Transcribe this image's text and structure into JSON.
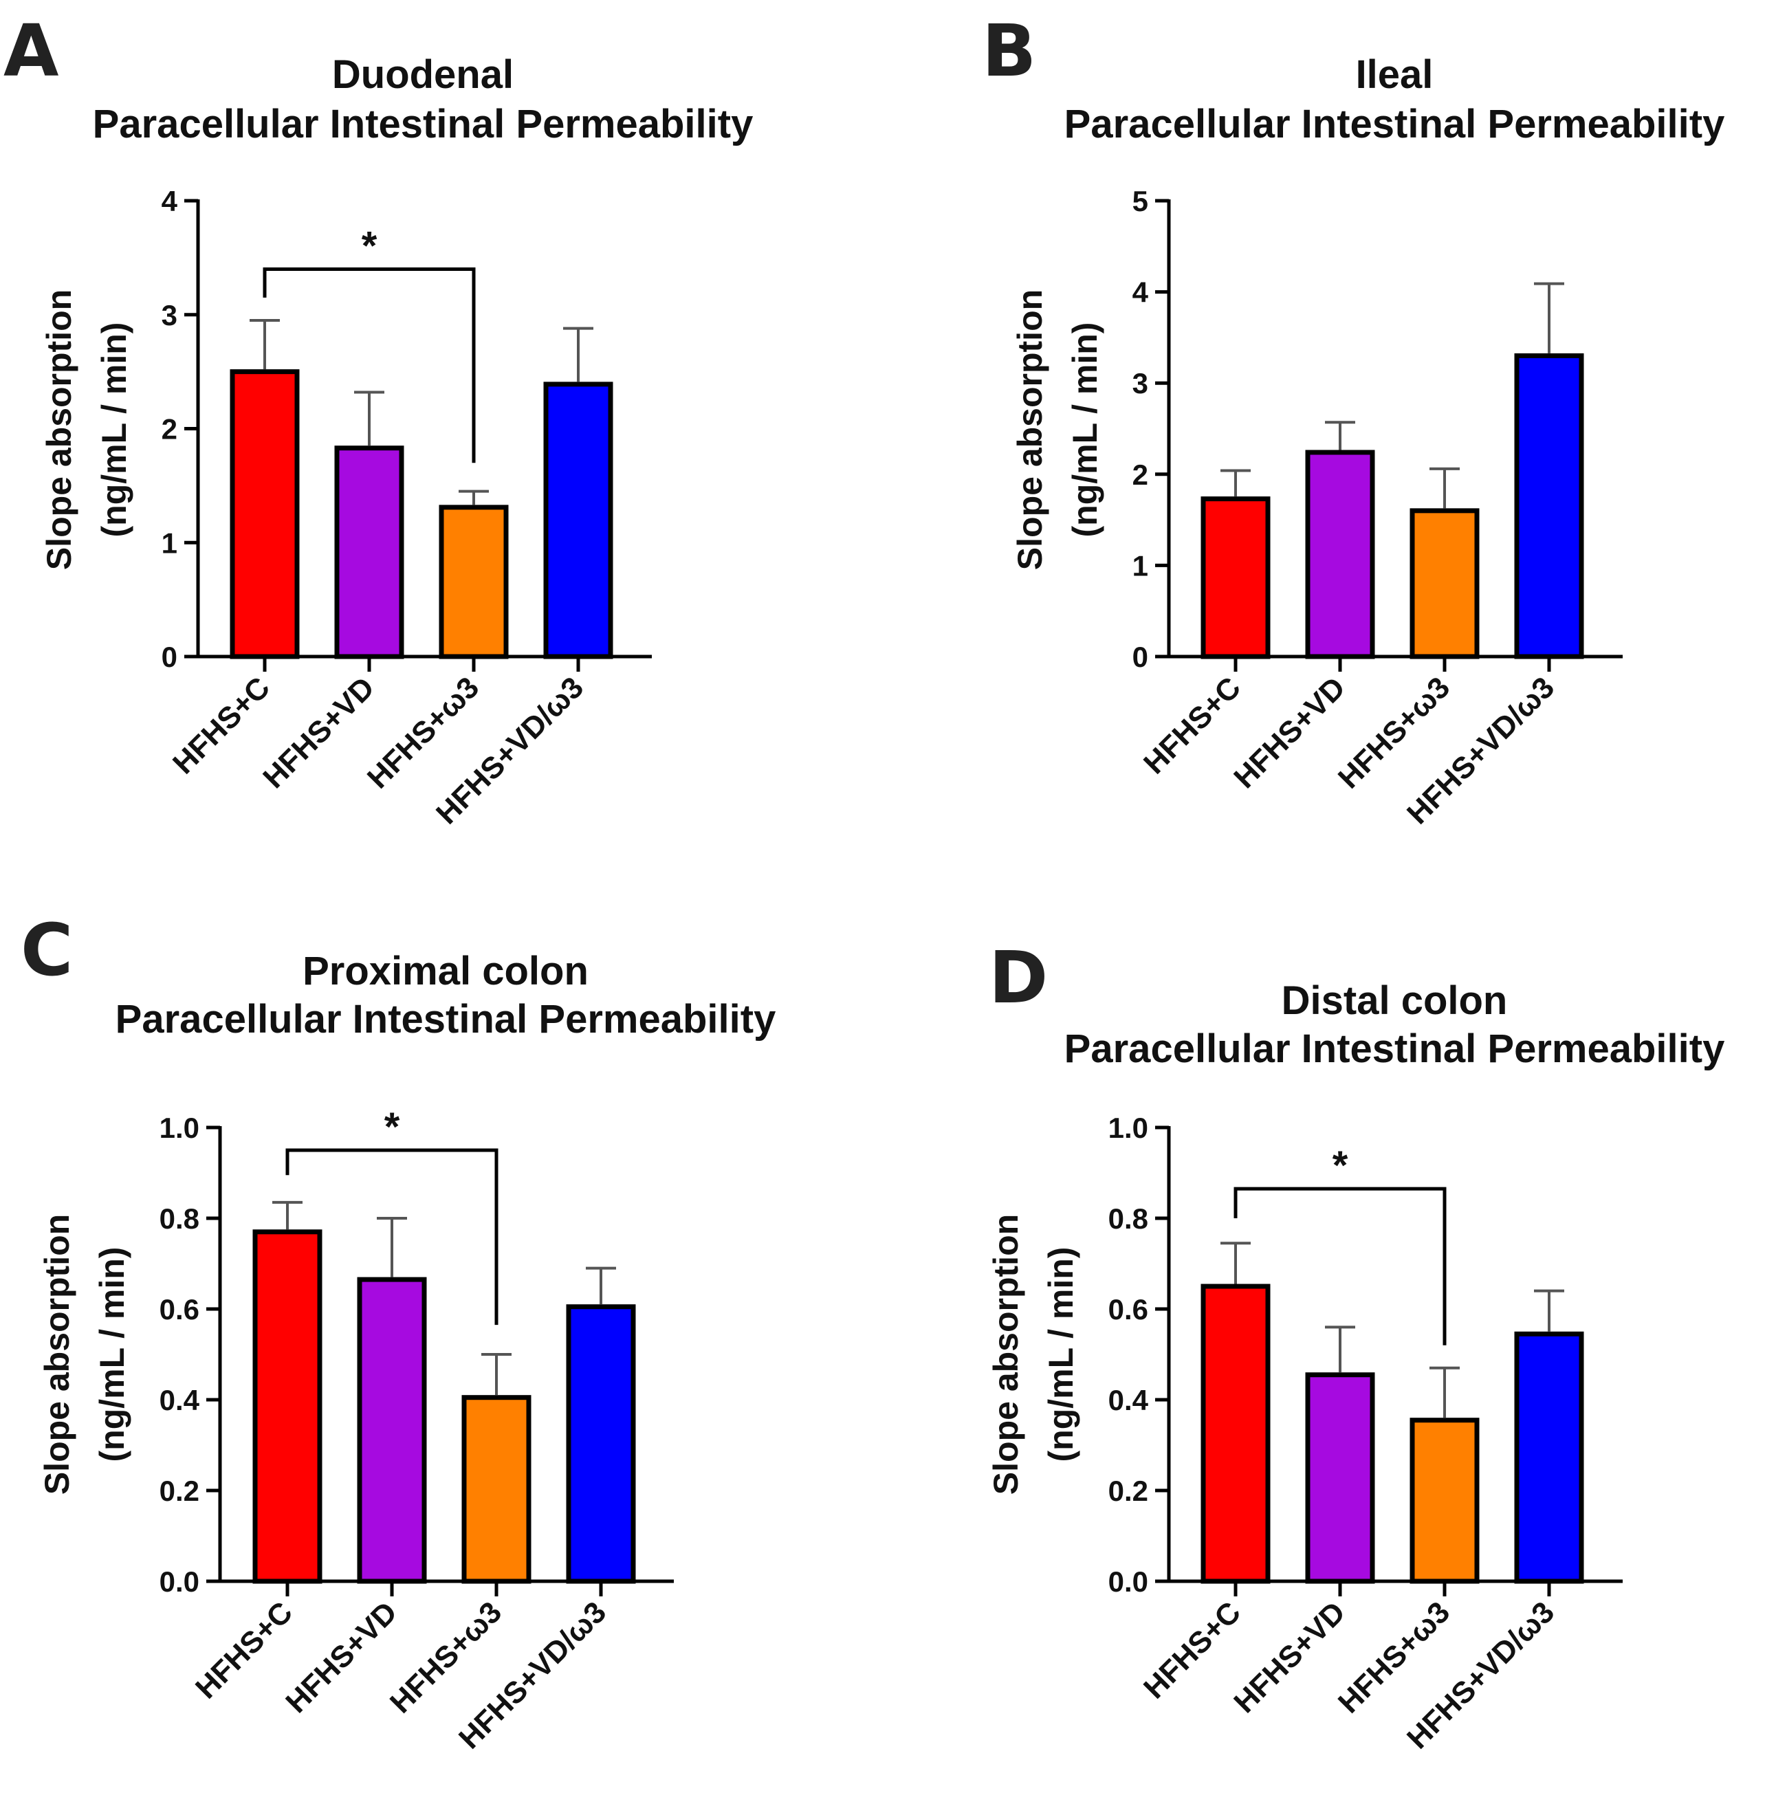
{
  "figure": {
    "colors": {
      "HFHS+C": "#ff0000",
      "HFHS+VD": "#a60ae0",
      "HFHS+ω3": "#ff8000",
      "HFHS+VD/ω3": "#0000ff",
      "outline": "#000000",
      "error_bar": "#555555"
    }
  },
  "chart_data": [
    {
      "panel": "A",
      "type": "bar",
      "title": [
        "Duodenal",
        "Paracellular Intestinal Permeability"
      ],
      "xlabel": "",
      "ylabel": [
        "Slope absorption",
        "(ng/mL / min)"
      ],
      "ylim": [
        0,
        4
      ],
      "yticks": [
        0,
        1,
        2,
        3,
        4
      ],
      "ytick_labels": [
        "0",
        "1",
        "2",
        "3",
        "4"
      ],
      "categories": [
        "HFHS+C",
        "HFHS+VD",
        "HFHS+ω3",
        "HFHS+VD/ω3"
      ],
      "values": [
        2.5,
        1.83,
        1.31,
        2.39
      ],
      "errors": [
        0.45,
        0.49,
        0.14,
        0.49
      ],
      "significance": [
        {
          "from": 0,
          "to": 2,
          "label": "*",
          "level": 3.4,
          "left_drop": 3.15,
          "right_drop": 1.7
        }
      ],
      "grid": false,
      "legend": "none"
    },
    {
      "panel": "B",
      "type": "bar",
      "title": [
        "Ileal",
        "Paracellular Intestinal Permeability"
      ],
      "xlabel": "",
      "ylabel": [
        "Slope absorption",
        "(ng/mL / min)"
      ],
      "ylim": [
        0,
        5
      ],
      "yticks": [
        0,
        1,
        2,
        3,
        4,
        5
      ],
      "ytick_labels": [
        "0",
        "1",
        "2",
        "3",
        "4",
        "5"
      ],
      "categories": [
        "HFHS+C",
        "HFHS+VD",
        "HFHS+ω3",
        "HFHS+VD/ω3"
      ],
      "values": [
        1.73,
        2.24,
        1.6,
        3.3
      ],
      "errors": [
        0.31,
        0.33,
        0.46,
        0.79
      ],
      "significance": [],
      "grid": false,
      "legend": "none"
    },
    {
      "panel": "C",
      "type": "bar",
      "title": [
        "Proximal colon",
        "Paracellular Intestinal Permeability"
      ],
      "xlabel": "",
      "ylabel": [
        "Slope absorption",
        "(ng/mL / min)"
      ],
      "ylim": [
        0,
        1.0
      ],
      "yticks": [
        0,
        0.2,
        0.4,
        0.6,
        0.8,
        1.0
      ],
      "ytick_labels": [
        "0.0",
        "0.2",
        "0.4",
        "0.6",
        "0.8",
        "1.0"
      ],
      "categories": [
        "HFHS+C",
        "HFHS+VD",
        "HFHS+ω3",
        "HFHS+VD/ω3"
      ],
      "values": [
        0.77,
        0.665,
        0.405,
        0.605
      ],
      "errors": [
        0.065,
        0.135,
        0.095,
        0.085
      ],
      "significance": [
        {
          "from": 0,
          "to": 2,
          "label": "*",
          "level": 0.95,
          "left_drop": 0.895,
          "right_drop": 0.565
        }
      ],
      "grid": false,
      "legend": "none"
    },
    {
      "panel": "D",
      "type": "bar",
      "title": [
        "Distal colon",
        "Paracellular Intestinal Permeability"
      ],
      "xlabel": "",
      "ylabel": [
        "Slope absorption",
        "(ng/mL / min)"
      ],
      "ylim": [
        0,
        1.0
      ],
      "yticks": [
        0,
        0.2,
        0.4,
        0.6,
        0.8,
        1.0
      ],
      "ytick_labels": [
        "0.0",
        "0.2",
        "0.4",
        "0.6",
        "0.8",
        "1.0"
      ],
      "categories": [
        "HFHS+C",
        "HFHS+VD",
        "HFHS+ω3",
        "HFHS+VD/ω3"
      ],
      "values": [
        0.65,
        0.455,
        0.355,
        0.545
      ],
      "errors": [
        0.095,
        0.105,
        0.115,
        0.095
      ],
      "significance": [
        {
          "from": 0,
          "to": 2,
          "label": "*",
          "level": 0.865,
          "left_drop": 0.8,
          "right_drop": 0.52
        }
      ],
      "grid": false,
      "legend": "none"
    }
  ]
}
